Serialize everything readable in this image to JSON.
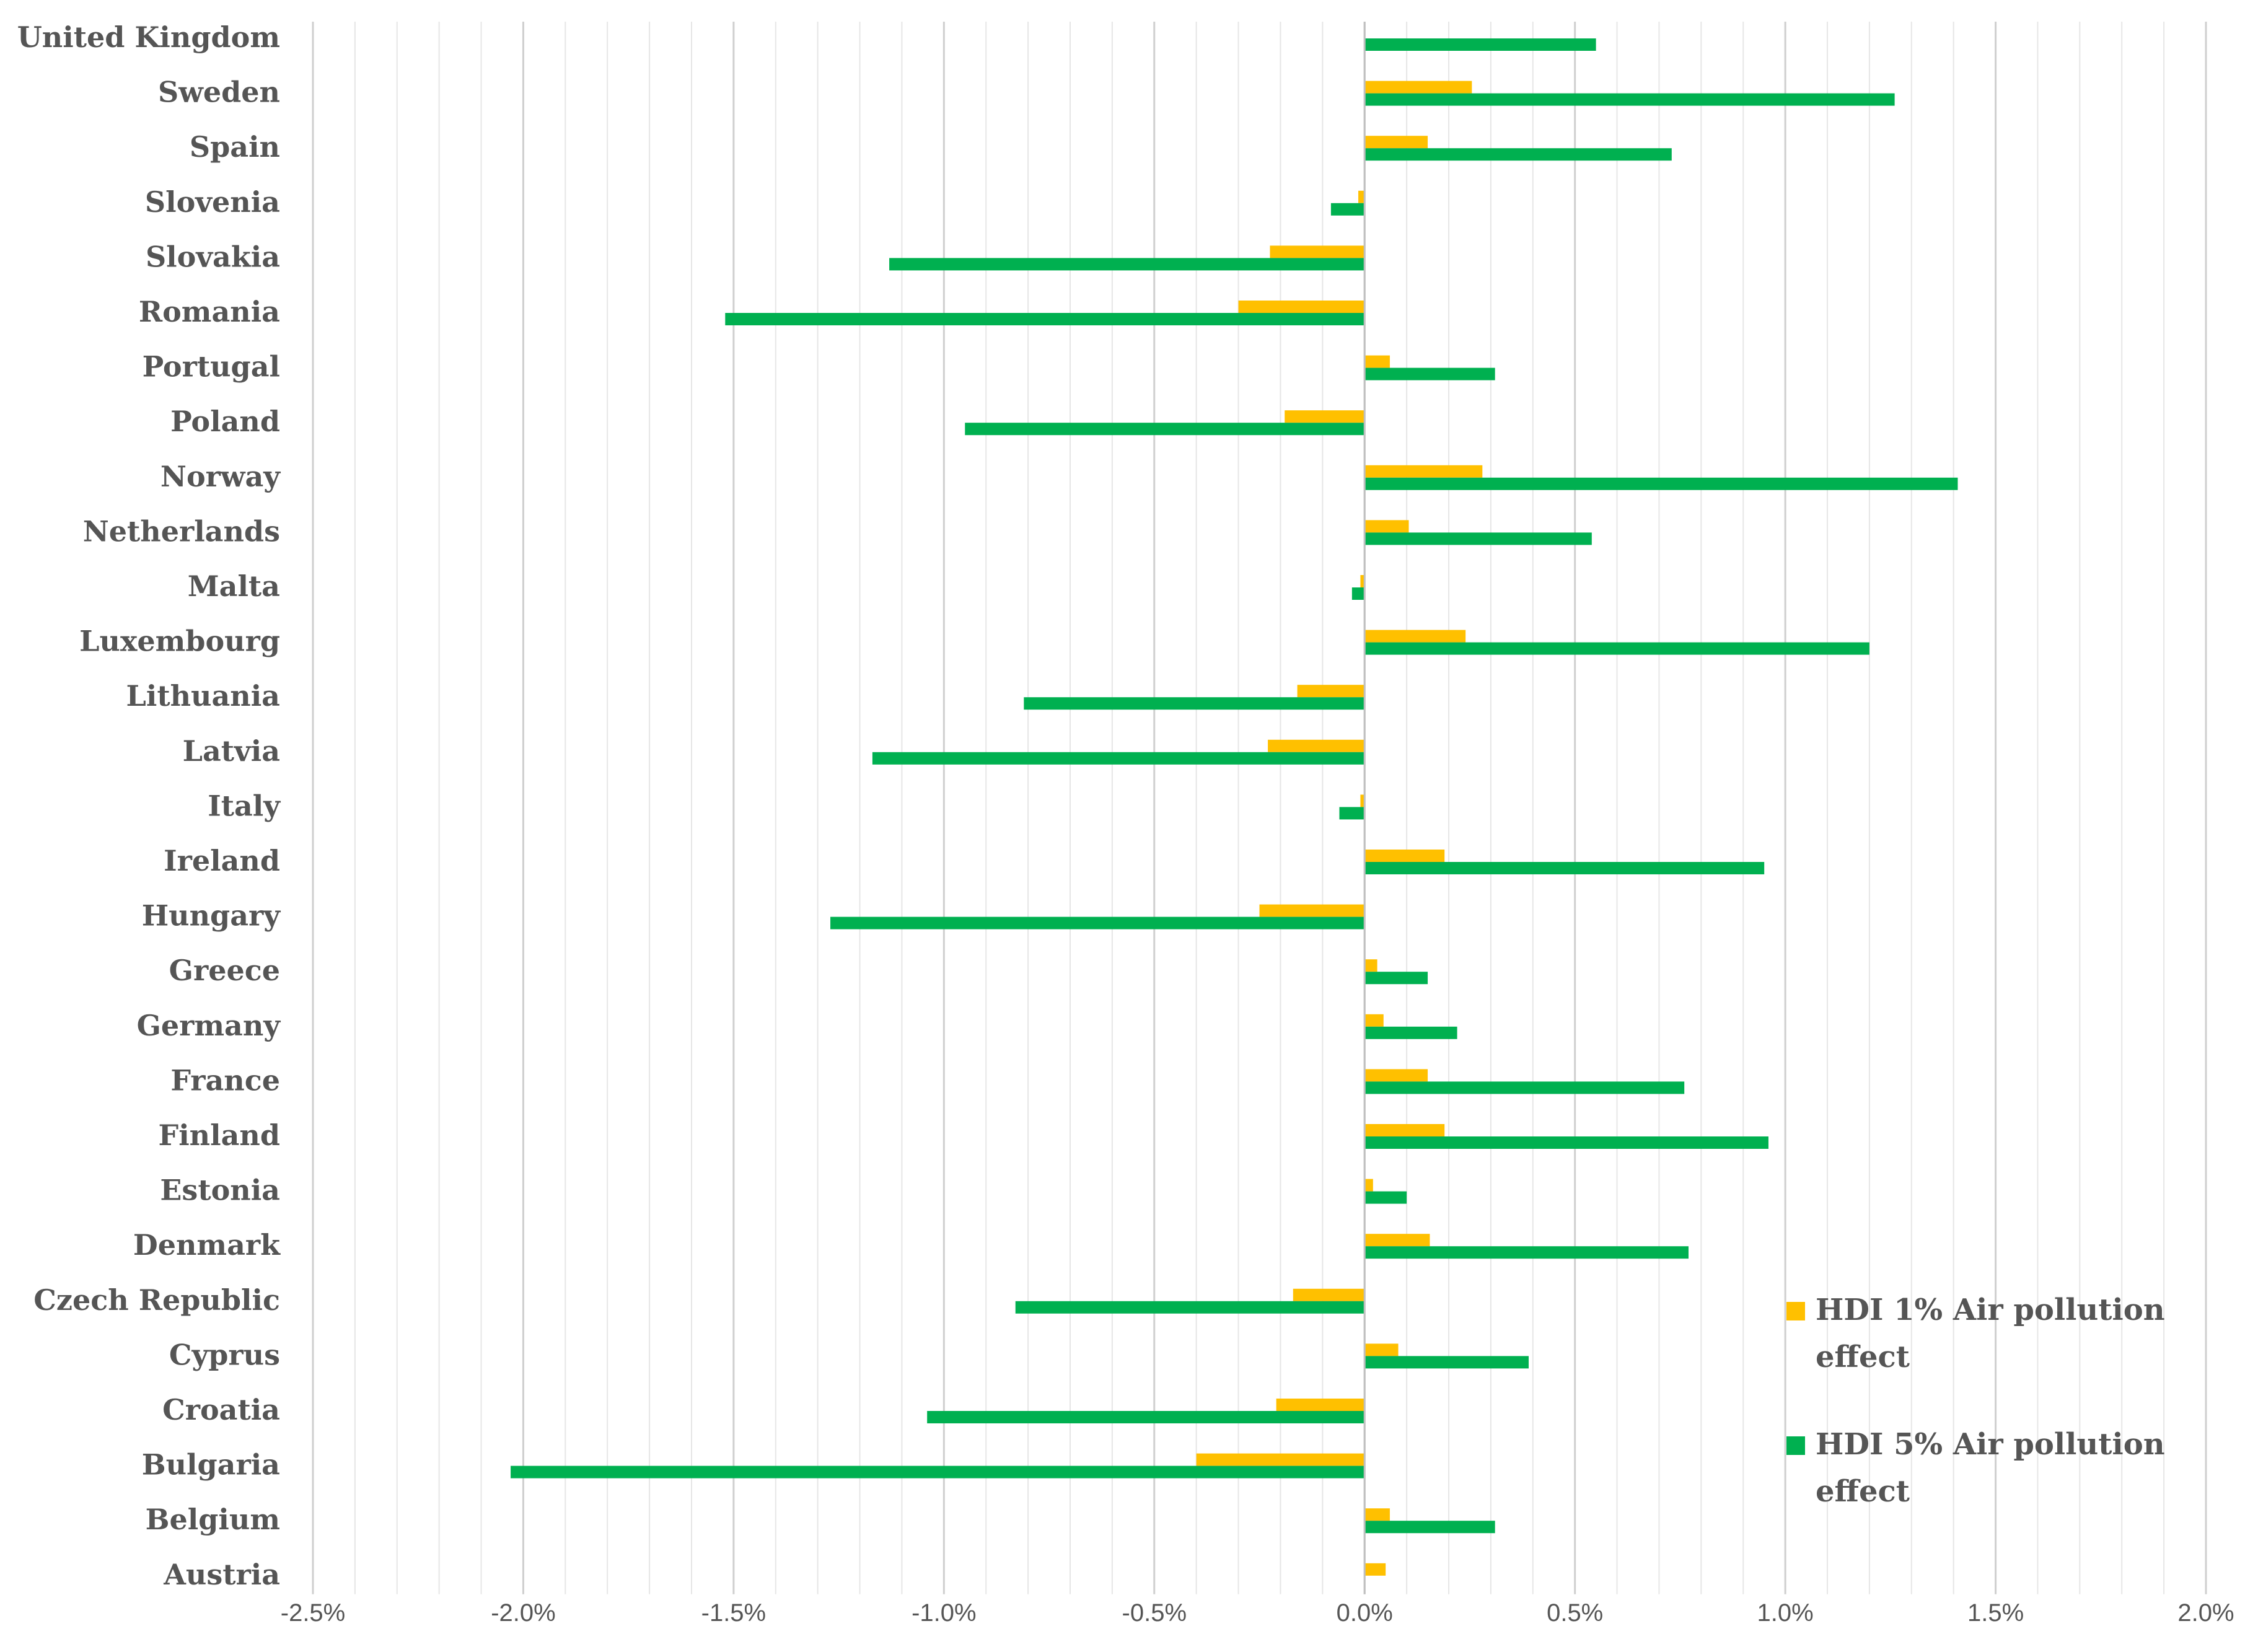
{
  "chart_data": {
    "type": "bar",
    "orientation": "horizontal",
    "title": "",
    "xlabel": "",
    "ylabel": "",
    "xlim": [
      -0.025,
      0.02
    ],
    "x_ticks": [
      -0.025,
      -0.02,
      -0.015,
      -0.01,
      -0.005,
      0.0,
      0.005,
      0.01,
      0.015,
      0.02
    ],
    "x_tick_labels": [
      "-2.5%",
      "-2.0%",
      "-1.5%",
      "-1.0%",
      "-0.5%",
      "0.0%",
      "0.5%",
      "1.0%",
      "1.5%",
      "2.0%"
    ],
    "grid": true,
    "legend_position": "bottom-right",
    "categories": [
      "United Kingdom",
      "Sweden",
      "Spain",
      "Slovenia",
      "Slovakia",
      "Romania",
      "Portugal",
      "Poland",
      "Norway",
      "Netherlands",
      "Malta",
      "Luxembourg",
      "Lithuania",
      "Latvia",
      "Italy",
      "Ireland",
      "Hungary",
      "Greece",
      "Germany",
      "France",
      "Finland",
      "Estonia",
      "Denmark",
      "Czech Republic",
      "Cyprus",
      "Croatia",
      "Bulgaria",
      "Belgium",
      "Austria"
    ],
    "series": [
      {
        "name": "HDI 1% Air pollution effect",
        "legend_lines": [
          "HDI 1% Air pollution",
          "effect"
        ],
        "color": "#FFC000",
        "values": [
          0.0,
          0.00255,
          0.0015,
          -0.00015,
          -0.00225,
          -0.003,
          0.0006,
          -0.0019,
          0.0028,
          0.00105,
          -0.0001,
          0.0024,
          -0.0016,
          -0.0023,
          -0.0001,
          0.0019,
          -0.0025,
          0.0003,
          0.00045,
          0.0015,
          0.0019,
          0.0002,
          0.00155,
          -0.0017,
          0.0008,
          -0.0021,
          -0.004,
          0.0006,
          0.0005
        ]
      },
      {
        "name": "HDI 5% Air pollution effect",
        "legend_lines": [
          "HDI 5% Air pollution",
          "effect"
        ],
        "color": "#00B050",
        "values": [
          0.0055,
          0.0126,
          0.0073,
          -0.0008,
          -0.0113,
          -0.0152,
          0.0031,
          -0.0095,
          0.0141,
          0.0054,
          -0.0003,
          0.012,
          -0.0081,
          -0.0117,
          -0.0006,
          0.0095,
          -0.0127,
          0.0015,
          0.0022,
          0.0076,
          0.0096,
          0.001,
          0.0077,
          -0.0083,
          0.0039,
          -0.0104,
          -0.0203,
          0.0031,
          0.0
        ]
      }
    ]
  }
}
